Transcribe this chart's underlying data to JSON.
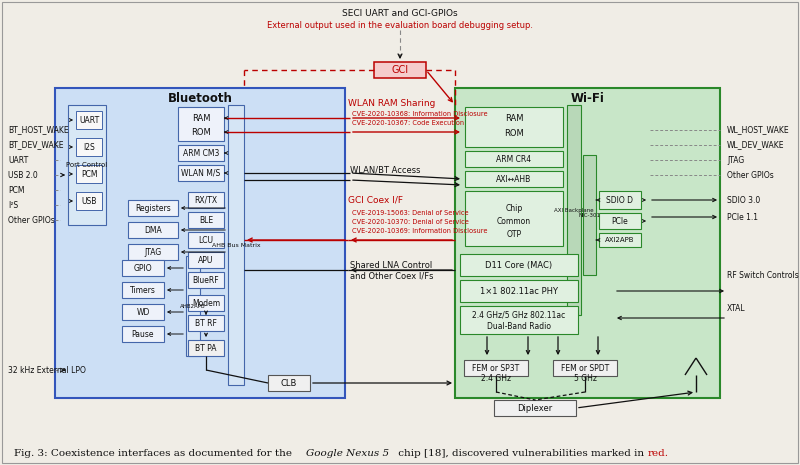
{
  "figsize": [
    8.0,
    4.65
  ],
  "dpi": 100,
  "bg": "#f0ede6",
  "bt_bg": "#ccdff5",
  "bt_ec": "#3355bb",
  "wf_bg": "#c8e6c8",
  "wf_ec": "#2a882a",
  "red": "#bb0000",
  "dark": "#111111",
  "box_bg": "#f0f0f0",
  "inner_box": "#e8eef8",
  "wf_inner": "#e0f0e0",
  "gray": "#888888",
  "caption": "Fig. 3: Coexistence interfaces as documented for the ",
  "caption_italic": "Google Nexus 5",
  "caption_rest": " chip [18], discovered vulnerabilities marked in ",
  "caption_red": "red."
}
